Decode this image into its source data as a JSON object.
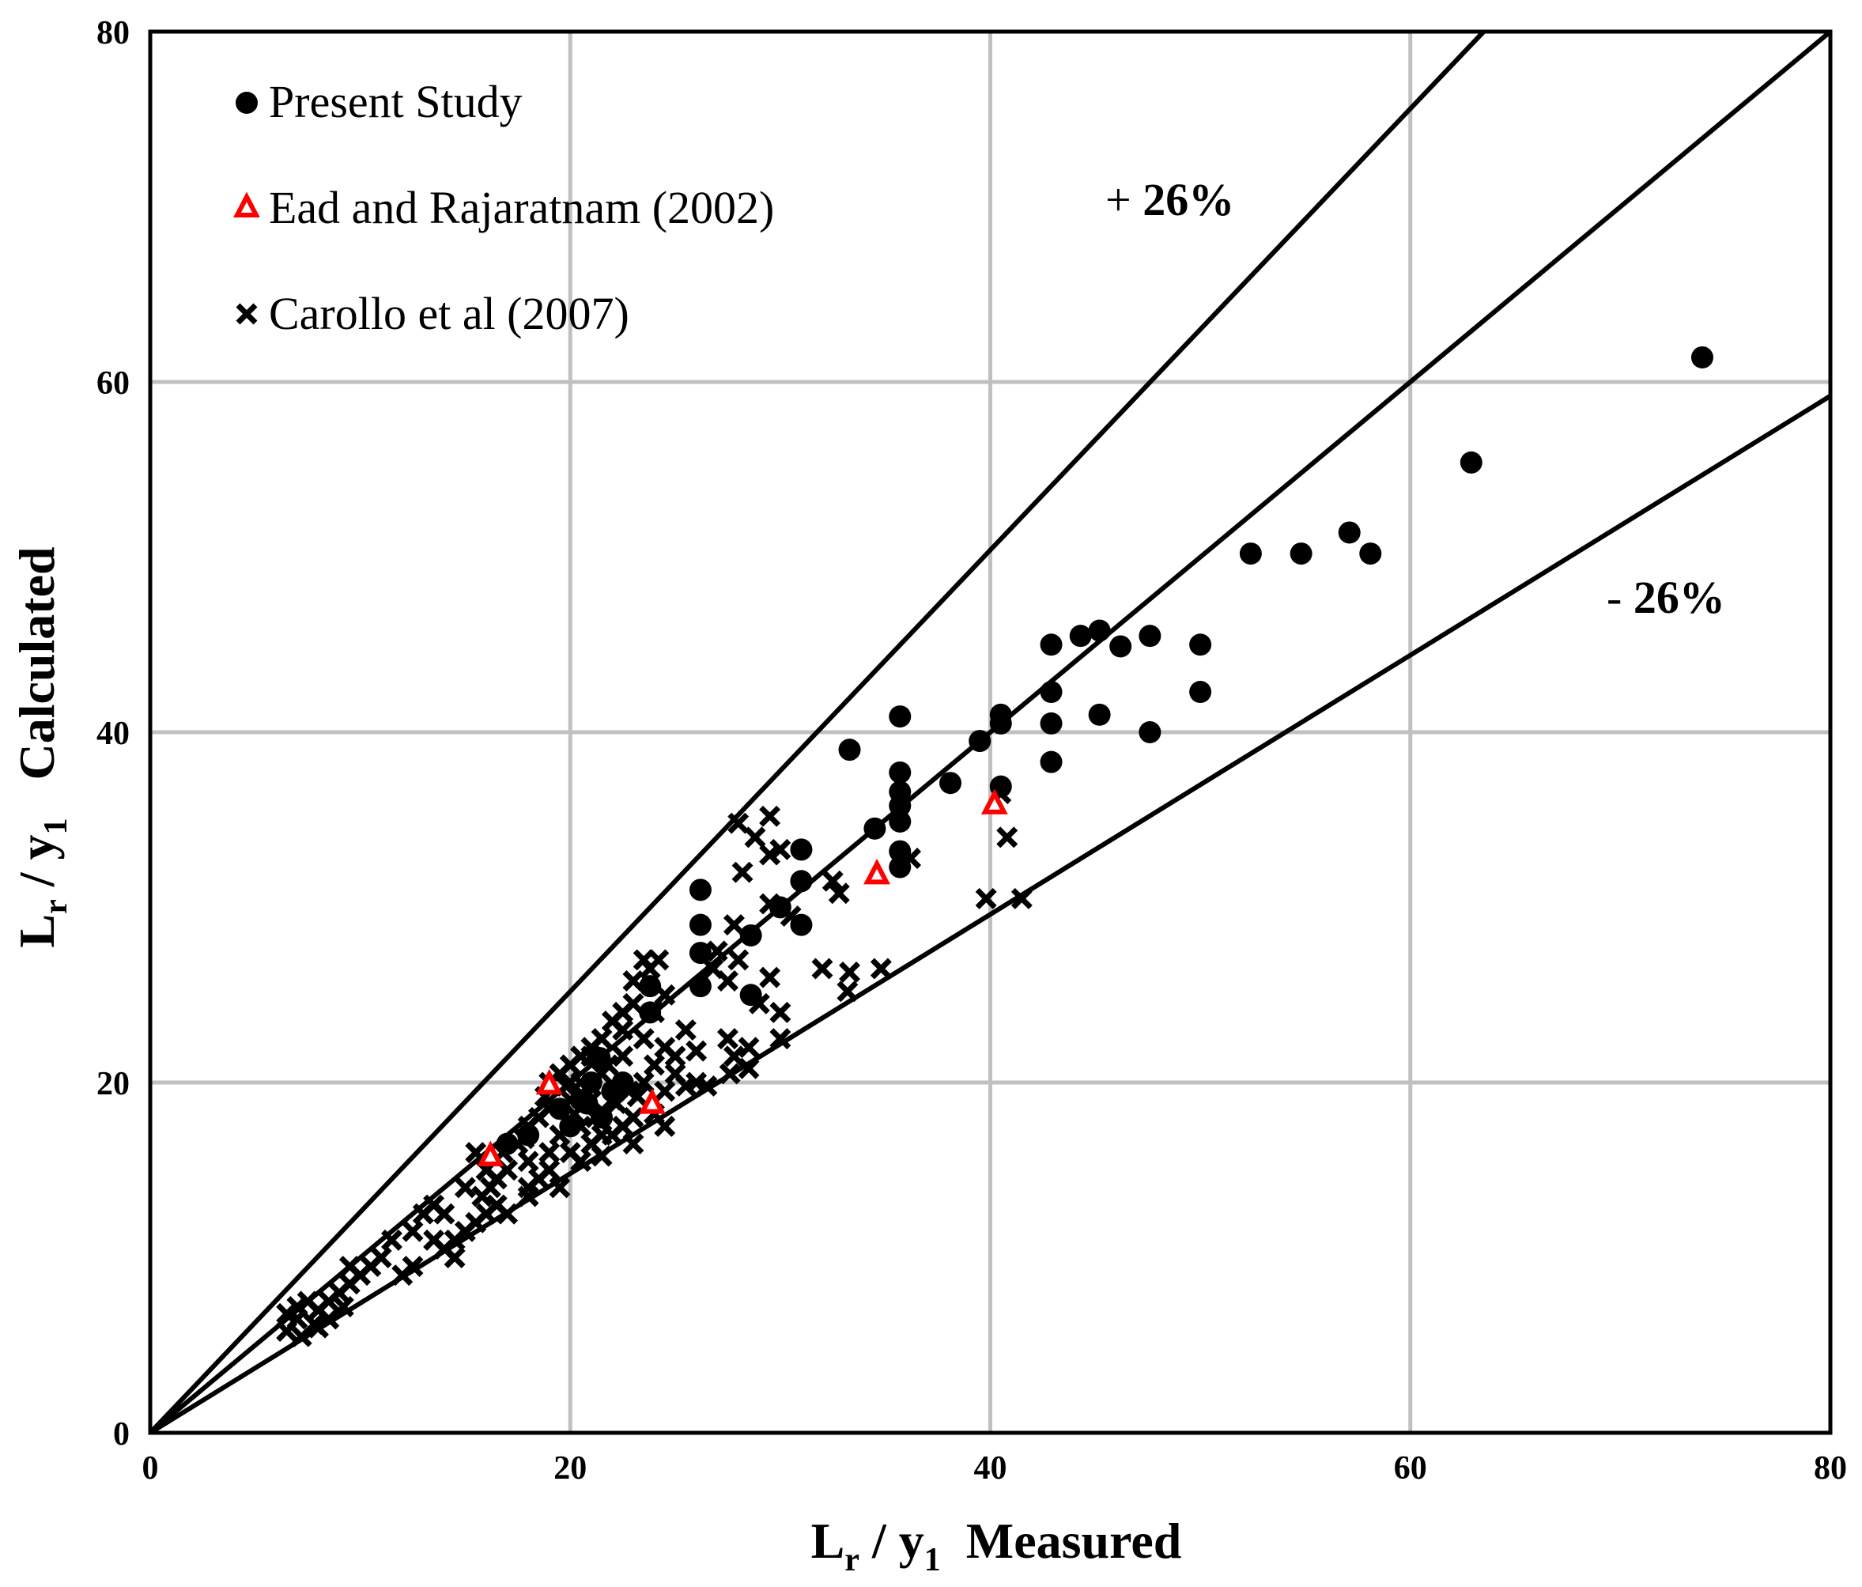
{
  "chart_data": {
    "type": "scatter",
    "title": "",
    "xlabel": {
      "main": "L",
      "sub1": "r",
      "mid": " / y",
      "sub2": "1",
      "rest": "  Measured"
    },
    "ylabel": {
      "main": "L",
      "sub1": "r",
      "mid": " / y",
      "sub2": "1",
      "rest": "   Calculated"
    },
    "xlim": [
      0,
      80
    ],
    "ylim": [
      0,
      80
    ],
    "xticks": [
      "0",
      "20",
      "40",
      "60",
      "80"
    ],
    "yticks": [
      "0",
      "20",
      "40",
      "60",
      "80"
    ],
    "grid": true,
    "legend_position": "top-left",
    "reference_lines": [
      {
        "slope": 1.26,
        "label": "+ 26%"
      },
      {
        "slope": 1.0,
        "label": ""
      },
      {
        "slope": 0.74,
        "label": "- 26%"
      }
    ],
    "band_labels": {
      "upper_prefix": "+ ",
      "upper_value": "26%",
      "lower_prefix": "- ",
      "lower_value": "26%"
    },
    "colors": {
      "present": "#000000",
      "ead": "#ff0000",
      "carollo": "#000000",
      "grid": "#c0c0c0"
    },
    "series": [
      {
        "name": "Present Study",
        "marker": "circle",
        "points": [
          [
            73.9,
            61.4
          ],
          [
            62.9,
            55.4
          ],
          [
            57.1,
            51.4
          ],
          [
            58.1,
            50.2
          ],
          [
            54.8,
            50.2
          ],
          [
            52.4,
            50.2
          ],
          [
            47.6,
            45.5
          ],
          [
            45.2,
            45.8
          ],
          [
            44.3,
            45.5
          ],
          [
            42.9,
            45.0
          ],
          [
            46.2,
            44.9
          ],
          [
            50.0,
            45.0
          ],
          [
            50.0,
            42.3
          ],
          [
            42.9,
            42.3
          ],
          [
            45.2,
            41.0
          ],
          [
            40.5,
            41.0
          ],
          [
            35.7,
            40.9
          ],
          [
            42.9,
            40.5
          ],
          [
            47.6,
            40.0
          ],
          [
            40.5,
            40.5
          ],
          [
            39.5,
            39.5
          ],
          [
            33.3,
            39.0
          ],
          [
            42.9,
            38.3
          ],
          [
            35.7,
            37.7
          ],
          [
            38.1,
            37.1
          ],
          [
            40.5,
            36.9
          ],
          [
            35.7,
            36.6
          ],
          [
            35.7,
            35.8
          ],
          [
            35.7,
            34.9
          ],
          [
            34.5,
            34.5
          ],
          [
            35.7,
            33.2
          ],
          [
            35.7,
            32.3
          ],
          [
            31.0,
            33.3
          ],
          [
            31.0,
            31.5
          ],
          [
            30.0,
            30.0
          ],
          [
            31.0,
            29.0
          ],
          [
            26.2,
            31.0
          ],
          [
            26.2,
            29.0
          ],
          [
            26.2,
            27.4
          ],
          [
            26.2,
            25.5
          ],
          [
            28.6,
            28.4
          ],
          [
            28.6,
            25.0
          ],
          [
            23.8,
            25.5
          ],
          [
            23.8,
            24.0
          ],
          [
            21.4,
            21.4
          ],
          [
            21.0,
            20.0
          ],
          [
            20.5,
            19.0
          ],
          [
            19.5,
            18.5
          ],
          [
            20.0,
            17.5
          ],
          [
            21.5,
            18.0
          ],
          [
            22.0,
            19.5
          ],
          [
            18.0,
            17.0
          ],
          [
            17.0,
            16.5
          ],
          [
            22.5,
            20.0
          ],
          [
            20.8,
            18.8
          ]
        ]
      },
      {
        "name": "Ead and Rajaratnam (2002)",
        "marker": "triangle",
        "points": [
          [
            40.2,
            35.9
          ],
          [
            34.6,
            31.9
          ],
          [
            16.2,
            15.8
          ],
          [
            19.0,
            19.9
          ],
          [
            23.9,
            18.8
          ]
        ]
      },
      {
        "name": "Carollo et al (2007)",
        "marker": "x",
        "points": [
          [
            28.0,
            34.8
          ],
          [
            29.5,
            35.2
          ],
          [
            29.5,
            33.0
          ],
          [
            28.8,
            34.0
          ],
          [
            30.0,
            33.3
          ],
          [
            28.2,
            32.0
          ],
          [
            36.2,
            32.8
          ],
          [
            40.8,
            34.0
          ],
          [
            40.5,
            36.5
          ],
          [
            32.5,
            31.5
          ],
          [
            32.8,
            30.8
          ],
          [
            33.3,
            26.3
          ],
          [
            34.8,
            26.5
          ],
          [
            33.2,
            25.2
          ],
          [
            32.0,
            26.5
          ],
          [
            39.8,
            30.5
          ],
          [
            41.5,
            30.5
          ],
          [
            29.5,
            30.2
          ],
          [
            30.5,
            29.5
          ],
          [
            27.8,
            29.0
          ],
          [
            28.0,
            27.0
          ],
          [
            27.0,
            27.5
          ],
          [
            27.5,
            25.8
          ],
          [
            26.8,
            26.5
          ],
          [
            29.5,
            26.0
          ],
          [
            30.0,
            24.0
          ],
          [
            30.0,
            22.5
          ],
          [
            28.5,
            22.0
          ],
          [
            27.8,
            21.5
          ],
          [
            27.5,
            22.5
          ],
          [
            28.5,
            20.8
          ],
          [
            27.6,
            20.5
          ],
          [
            26.0,
            20.0
          ],
          [
            25.0,
            20.5
          ],
          [
            24.5,
            22.0
          ],
          [
            25.5,
            23.0
          ],
          [
            24.0,
            24.0
          ],
          [
            24.5,
            25.0
          ],
          [
            23.8,
            26.5
          ],
          [
            24.2,
            27.0
          ],
          [
            23.5,
            27.0
          ],
          [
            23.0,
            24.5
          ],
          [
            22.5,
            23.0
          ],
          [
            22.0,
            23.5
          ],
          [
            21.5,
            22.5
          ],
          [
            21.0,
            22.0
          ],
          [
            20.5,
            21.5
          ],
          [
            20.0,
            21.0
          ],
          [
            19.5,
            20.5
          ],
          [
            19.0,
            20.0
          ],
          [
            20.5,
            20.0
          ],
          [
            21.5,
            20.5
          ],
          [
            22.5,
            21.5
          ],
          [
            23.5,
            22.5
          ],
          [
            24.0,
            21.0
          ],
          [
            23.5,
            20.0
          ],
          [
            22.8,
            19.5
          ],
          [
            24.5,
            19.5
          ],
          [
            22.0,
            19.0
          ],
          [
            21.0,
            19.0
          ],
          [
            20.0,
            19.0
          ],
          [
            19.0,
            18.5
          ],
          [
            18.5,
            18.0
          ],
          [
            18.0,
            17.5
          ],
          [
            19.5,
            17.0
          ],
          [
            20.5,
            17.5
          ],
          [
            21.5,
            17.0
          ],
          [
            22.5,
            17.5
          ],
          [
            23.0,
            18.0
          ],
          [
            24.0,
            18.2
          ],
          [
            21.0,
            16.5
          ],
          [
            20.0,
            16.0
          ],
          [
            19.0,
            16.0
          ],
          [
            18.0,
            15.5
          ],
          [
            17.5,
            16.5
          ],
          [
            17.0,
            15.0
          ],
          [
            16.5,
            14.5
          ],
          [
            18.0,
            14.0
          ],
          [
            18.5,
            14.5
          ],
          [
            19.0,
            15.0
          ],
          [
            16.0,
            15.0
          ],
          [
            15.5,
            16.0
          ],
          [
            15.0,
            14.0
          ],
          [
            16.5,
            13.0
          ],
          [
            16.0,
            12.5
          ],
          [
            15.5,
            12.0
          ],
          [
            15.0,
            11.5
          ],
          [
            14.5,
            11.0
          ],
          [
            14.0,
            12.5
          ],
          [
            13.5,
            13.0
          ],
          [
            13.0,
            12.5
          ],
          [
            14.5,
            10.0
          ],
          [
            14.0,
            10.5
          ],
          [
            13.5,
            11.0
          ],
          [
            12.5,
            9.5
          ],
          [
            12.0,
            9.0
          ],
          [
            12.5,
            11.5
          ],
          [
            11.5,
            11.0
          ],
          [
            11.0,
            10.0
          ],
          [
            10.5,
            9.5
          ],
          [
            10.0,
            9.0
          ],
          [
            9.5,
            8.5
          ],
          [
            9.5,
            9.5
          ],
          [
            9.0,
            8.0
          ],
          [
            8.5,
            7.5
          ],
          [
            8.0,
            7.0
          ],
          [
            8.5,
            6.5
          ],
          [
            8.0,
            6.0
          ],
          [
            7.5,
            7.5
          ],
          [
            7.0,
            6.5
          ],
          [
            7.0,
            7.2
          ],
          [
            6.5,
            5.8
          ],
          [
            6.5,
            6.8
          ],
          [
            7.2,
            5.5
          ],
          [
            7.8,
            6.2
          ],
          [
            9.2,
            7.2
          ],
          [
            17.0,
            12.5
          ],
          [
            18.0,
            13.5
          ],
          [
            25.5,
            19.8
          ],
          [
            26.5,
            19.8
          ],
          [
            22.0,
            17.0
          ],
          [
            23.0,
            16.5
          ],
          [
            24.5,
            17.5
          ],
          [
            21.5,
            15.8
          ],
          [
            20.5,
            15.5
          ],
          [
            25.0,
            21.5
          ],
          [
            26.0,
            21.8
          ],
          [
            29.0,
            24.5
          ],
          [
            23.0,
            25.8
          ],
          [
            22.5,
            24.0
          ],
          [
            21.8,
            21.0
          ],
          [
            19.8,
            19.8
          ],
          [
            18.8,
            19.2
          ],
          [
            20.2,
            18.2
          ],
          [
            21.2,
            18.0
          ],
          [
            22.2,
            18.8
          ],
          [
            23.2,
            19.2
          ],
          [
            17.8,
            16.8
          ],
          [
            16.8,
            16.0
          ],
          [
            15.8,
            13.5
          ],
          [
            16.2,
            14.0
          ],
          [
            19.5,
            14.0
          ],
          [
            21.0,
            21.5
          ],
          [
            20.0,
            20.0
          ]
        ]
      }
    ]
  }
}
